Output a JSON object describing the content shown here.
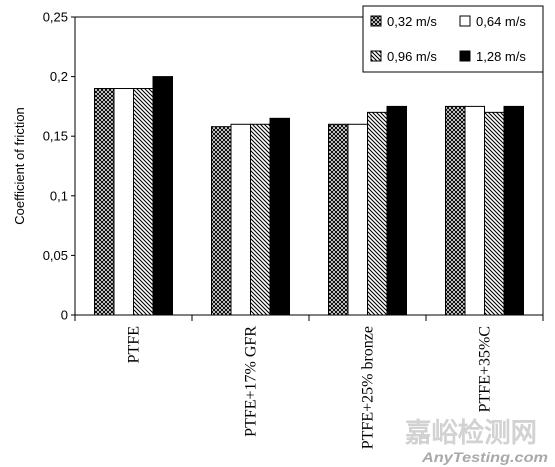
{
  "chart_data": {
    "type": "bar",
    "categories": [
      "PTFE",
      "PTFE+17% GFR",
      "PTFE+25% bronze",
      "PTFE+35%C"
    ],
    "series": [
      {
        "name": "0,32 m/s",
        "color": "#000000",
        "hatch": "cross",
        "values": [
          0.19,
          0.158,
          0.16,
          0.175
        ]
      },
      {
        "name": "0,64 m/s",
        "color": "#ffffff",
        "hatch": "none",
        "values": [
          0.19,
          0.16,
          0.16,
          0.175
        ]
      },
      {
        "name": "0,96 m/s",
        "color": "#000000",
        "hatch": "diagonal",
        "values": [
          0.19,
          0.16,
          0.17,
          0.17
        ]
      },
      {
        "name": "1,28 m/s",
        "color": "#000000",
        "hatch": "none",
        "values": [
          0.2,
          0.165,
          0.175,
          0.175
        ]
      }
    ],
    "ylabel": "Coefficient of friction",
    "ylim": [
      0,
      0.25
    ],
    "yticks": [
      "0",
      "0,05",
      "0,1",
      "0,15",
      "0,2",
      "0,25"
    ],
    "ytick_values": [
      0,
      0.05,
      0.1,
      0.15,
      0.2,
      0.25
    ],
    "grid": false,
    "legend": "top-right"
  },
  "colors": {
    "background": "#ffffff",
    "axis": "#000000",
    "watermark_cn": "#d2d2d2",
    "watermark_en": "#a9a9a9"
  },
  "watermark": {
    "cn": "嘉峪检测网",
    "en": "AnyTesting.com"
  }
}
